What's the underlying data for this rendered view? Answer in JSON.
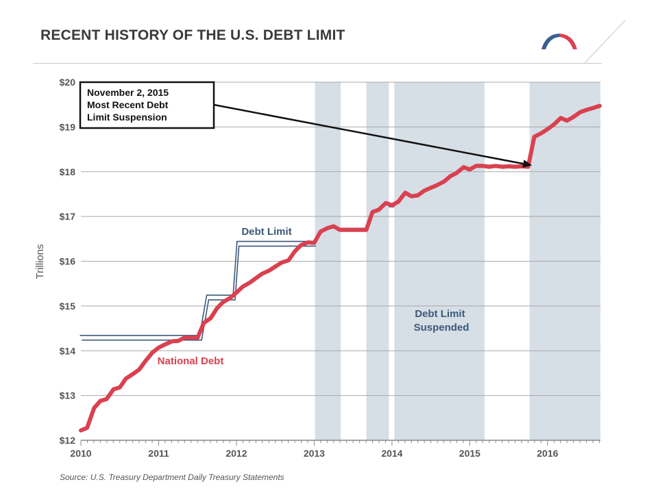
{
  "page": {
    "title": "RECENT HISTORY OF THE U.S. DEBT LIMIT",
    "source": "Source: U.S. Treasury Department Daily Treasury Statements",
    "colors": {
      "national_debt": "#d9414f",
      "debt_limit": "#3c5878",
      "suspension_band": "#d6dee6",
      "logo_blue": "#3c5e8f",
      "logo_red": "#d9414f"
    }
  },
  "chart_data": {
    "type": "line",
    "title": "RECENT HISTORY OF THE U.S. DEBT LIMIT",
    "xlabel": "",
    "ylabel": "Trillions",
    "xlim": [
      2010,
      2016.68
    ],
    "ylim": [
      12,
      20
    ],
    "x_ticks": [
      2010,
      2011,
      2012,
      2013,
      2014,
      2015,
      2016
    ],
    "x_tick_labels": [
      "2010",
      "2011",
      "2012",
      "2013",
      "2014",
      "2015",
      "2016"
    ],
    "y_ticks": [
      12,
      13,
      14,
      15,
      16,
      17,
      18,
      19,
      20
    ],
    "y_tick_labels": [
      "$12",
      "$13",
      "$14",
      "$15",
      "$16",
      "$17",
      "$18",
      "$19",
      "$20"
    ],
    "grid": true,
    "suspended_periods": [
      {
        "start": 2013.01,
        "end": 2013.34
      },
      {
        "start": 2013.67,
        "end": 2013.96
      },
      {
        "start": 2014.03,
        "end": 2015.19
      },
      {
        "start": 2015.77,
        "end": 2016.68
      }
    ],
    "series": [
      {
        "name": "National Debt",
        "x": [
          2010.0,
          2010.08,
          2010.17,
          2010.25,
          2010.33,
          2010.42,
          2010.5,
          2010.58,
          2010.67,
          2010.75,
          2010.83,
          2010.92,
          2011.0,
          2011.08,
          2011.17,
          2011.25,
          2011.33,
          2011.42,
          2011.5,
          2011.58,
          2011.67,
          2011.75,
          2011.83,
          2011.92,
          2012.0,
          2012.08,
          2012.17,
          2012.25,
          2012.33,
          2012.42,
          2012.5,
          2012.58,
          2012.67,
          2012.75,
          2012.83,
          2012.92,
          2013.0,
          2013.08,
          2013.17,
          2013.25,
          2013.33,
          2013.42,
          2013.5,
          2013.58,
          2013.67,
          2013.75,
          2013.83,
          2013.92,
          2014.0,
          2014.08,
          2014.17,
          2014.25,
          2014.33,
          2014.42,
          2014.5,
          2014.58,
          2014.67,
          2014.75,
          2014.83,
          2014.92,
          2015.0,
          2015.08,
          2015.17,
          2015.25,
          2015.33,
          2015.42,
          2015.5,
          2015.58,
          2015.67,
          2015.75,
          2015.83,
          2015.92,
          2016.0,
          2016.08,
          2016.17,
          2016.25,
          2016.33,
          2016.42,
          2016.5,
          2016.58,
          2016.67
        ],
        "y": [
          12.22,
          12.28,
          12.72,
          12.88,
          12.92,
          13.14,
          13.18,
          13.38,
          13.48,
          13.58,
          13.77,
          13.96,
          14.07,
          14.14,
          14.21,
          14.22,
          14.29,
          14.29,
          14.29,
          14.62,
          14.73,
          14.95,
          15.09,
          15.18,
          15.3,
          15.43,
          15.52,
          15.62,
          15.72,
          15.79,
          15.88,
          15.97,
          16.02,
          16.22,
          16.36,
          16.42,
          16.41,
          16.66,
          16.74,
          16.78,
          16.7,
          16.7,
          16.7,
          16.7,
          16.7,
          17.1,
          17.15,
          17.3,
          17.25,
          17.33,
          17.53,
          17.45,
          17.47,
          17.58,
          17.64,
          17.7,
          17.78,
          17.9,
          17.97,
          18.1,
          18.05,
          18.13,
          18.13,
          18.11,
          18.13,
          18.11,
          18.12,
          18.11,
          18.12,
          18.11,
          18.78,
          18.86,
          18.95,
          19.05,
          19.2,
          19.14,
          19.22,
          19.33,
          19.38,
          19.42,
          19.47
        ]
      },
      {
        "name": "Debt Limit",
        "x": [
          2010.0,
          2011.54,
          2011.63,
          2011.97,
          2012.02,
          2013.01
        ],
        "y": [
          14.29,
          14.29,
          15.19,
          15.19,
          16.39,
          16.39
        ]
      }
    ],
    "debt_limit_segments": [
      {
        "x": [
          2013.33,
          2013.67
        ],
        "y": [
          16.71,
          16.71
        ]
      },
      {
        "x": [
          2013.96,
          2014.03
        ],
        "y": [
          17.24,
          17.24
        ]
      },
      {
        "x": [
          2015.19,
          2015.77
        ],
        "y": [
          18.12,
          18.12
        ]
      }
    ],
    "annotations": {
      "callout_lines": [
        "November 2, 2015",
        "Most Recent Debt",
        "Limit Suspension"
      ],
      "callout_target": {
        "x": 2015.8,
        "y": 18.11
      },
      "debt_limit_label": "Debt Limit",
      "national_debt_label": "National Debt",
      "suspended_label_lines": [
        "Debt Limit",
        "Suspended"
      ]
    }
  }
}
